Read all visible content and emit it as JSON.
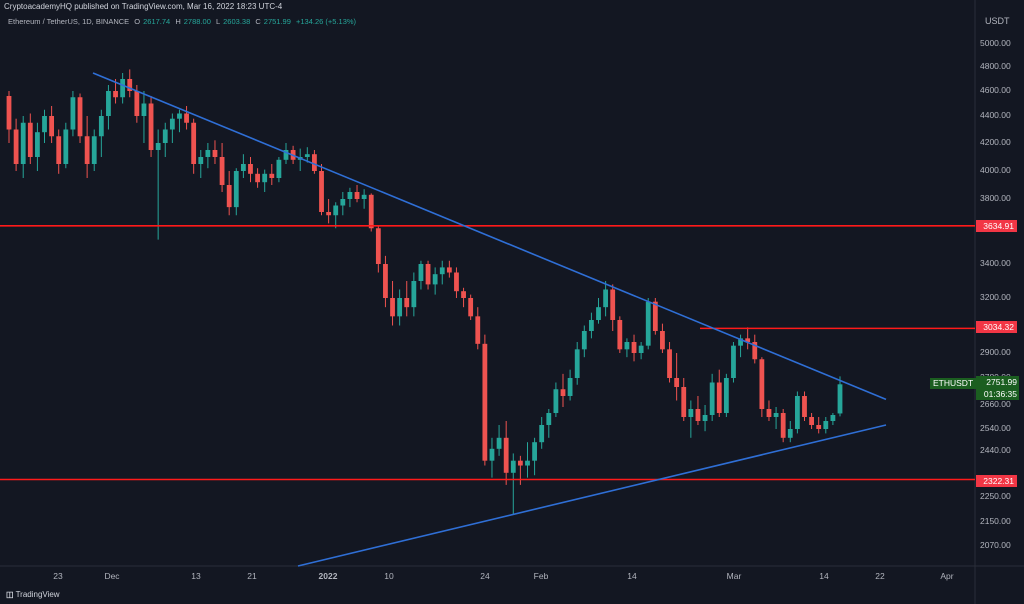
{
  "header": {
    "publisher": "CryptoacademyHQ published on TradingView.com, Mar 16, 2022 18:23 UTC-4",
    "symbol": "Ethereum / TetherUS, 1D, BINANCE",
    "open_label": "O",
    "open": "2617.74",
    "high_label": "H",
    "high": "2788.00",
    "low_label": "L",
    "low": "2603.38",
    "close_label": "C",
    "close": "2751.99",
    "change": "+134.26 (+5.13%)"
  },
  "currency": "USDT",
  "tags": {
    "ticker": "ETHUSDT",
    "last_price": "2751.99",
    "countdown": "01:36:35",
    "levels": [
      "3634.91",
      "3034.32",
      "2322.31"
    ]
  },
  "footer": {
    "logo": "TradingView"
  },
  "colors": {
    "up": "#26a69a",
    "down": "#ef5350",
    "trend": "#2f6fd6",
    "level": "#ff1a1a",
    "background": "#131722"
  },
  "chart_data": {
    "type": "candlestick",
    "y_ticks": [
      5000,
      4800,
      4600,
      4400,
      4200,
      4000,
      3800,
      3400,
      3200,
      2900,
      2780,
      2660,
      2540,
      2440,
      2250,
      2150,
      2070
    ],
    "x_ticks": [
      "23",
      "Dec",
      "13",
      "21",
      "2022",
      "10",
      "24",
      "Feb",
      "14",
      "Mar",
      "14",
      "22",
      "Apr"
    ],
    "horizontal_levels": [
      3634.91,
      3034.32,
      2322.31
    ],
    "trendlines": [
      {
        "name": "descending",
        "from": [
          "Nov 24",
          4750
        ],
        "to": [
          "Mar 19",
          2685
        ]
      },
      {
        "name": "ascending",
        "from": [
          "Jan 1",
          2000
        ],
        "to": [
          "Mar 19",
          2560
        ]
      }
    ],
    "candles": [
      [
        4560,
        4600,
        4200,
        4300
      ],
      [
        4300,
        4380,
        4000,
        4050
      ],
      [
        4050,
        4400,
        3950,
        4350
      ],
      [
        4350,
        4420,
        4050,
        4100
      ],
      [
        4100,
        4350,
        4000,
        4280
      ],
      [
        4280,
        4450,
        4200,
        4400
      ],
      [
        4400,
        4480,
        4200,
        4250
      ],
      [
        4250,
        4300,
        3980,
        4050
      ],
      [
        4050,
        4350,
        4020,
        4300
      ],
      [
        4300,
        4600,
        4250,
        4550
      ],
      [
        4550,
        4580,
        4200,
        4250
      ],
      [
        4250,
        4400,
        3950,
        4050
      ],
      [
        4050,
        4300,
        4000,
        4250
      ],
      [
        4250,
        4450,
        4100,
        4400
      ],
      [
        4400,
        4650,
        4300,
        4600
      ],
      [
        4600,
        4700,
        4500,
        4550
      ],
      [
        4550,
        4750,
        4500,
        4700
      ],
      [
        4700,
        4780,
        4550,
        4600
      ],
      [
        4600,
        4650,
        4350,
        4400
      ],
      [
        4400,
        4600,
        4200,
        4500
      ],
      [
        4500,
        4560,
        4100,
        4150
      ],
      [
        4150,
        4300,
        3550,
        4200
      ],
      [
        4200,
        4350,
        4100,
        4300
      ],
      [
        4300,
        4420,
        4200,
        4380
      ],
      [
        4380,
        4450,
        4280,
        4420
      ],
      [
        4420,
        4480,
        4300,
        4350
      ],
      [
        4350,
        4380,
        3980,
        4050
      ],
      [
        4050,
        4150,
        3950,
        4100
      ],
      [
        4100,
        4200,
        4020,
        4150
      ],
      [
        4150,
        4220,
        4050,
        4100
      ],
      [
        4100,
        4200,
        3850,
        3900
      ],
      [
        3900,
        4000,
        3700,
        3750
      ],
      [
        3750,
        4020,
        3700,
        4000
      ],
      [
        4000,
        4120,
        3950,
        4050
      ],
      [
        4050,
        4100,
        3920,
        3980
      ],
      [
        3980,
        4020,
        3880,
        3920
      ],
      [
        3920,
        4010,
        3850,
        3980
      ],
      [
        3980,
        4050,
        3900,
        3950
      ],
      [
        3950,
        4100,
        3920,
        4080
      ],
      [
        4080,
        4200,
        4050,
        4150
      ],
      [
        4150,
        4180,
        4050,
        4080
      ],
      [
        4080,
        4160,
        4000,
        4100
      ],
      [
        4100,
        4170,
        4060,
        4120
      ],
      [
        4120,
        4150,
        3980,
        4000
      ],
      [
        4000,
        4050,
        3700,
        3720
      ],
      [
        3720,
        3800,
        3650,
        3700
      ],
      [
        3700,
        3780,
        3620,
        3760
      ],
      [
        3760,
        3850,
        3700,
        3800
      ],
      [
        3800,
        3880,
        3750,
        3850
      ],
      [
        3850,
        3900,
        3780,
        3800
      ],
      [
        3800,
        3870,
        3740,
        3830
      ],
      [
        3830,
        3840,
        3600,
        3620
      ],
      [
        3620,
        3640,
        3350,
        3400
      ],
      [
        3400,
        3450,
        3150,
        3200
      ],
      [
        3200,
        3300,
        3050,
        3100
      ],
      [
        3100,
        3250,
        3050,
        3200
      ],
      [
        3200,
        3300,
        3100,
        3150
      ],
      [
        3150,
        3350,
        3100,
        3300
      ],
      [
        3300,
        3420,
        3250,
        3400
      ],
      [
        3400,
        3420,
        3250,
        3280
      ],
      [
        3280,
        3380,
        3220,
        3340
      ],
      [
        3340,
        3420,
        3280,
        3380
      ],
      [
        3380,
        3420,
        3320,
        3350
      ],
      [
        3350,
        3380,
        3200,
        3240
      ],
      [
        3240,
        3260,
        3150,
        3200
      ],
      [
        3200,
        3220,
        3080,
        3100
      ],
      [
        3100,
        3150,
        2920,
        2950
      ],
      [
        2950,
        3000,
        2380,
        2400
      ],
      [
        2400,
        2500,
        2330,
        2450
      ],
      [
        2450,
        2560,
        2420,
        2500
      ],
      [
        2500,
        2580,
        2300,
        2350
      ],
      [
        2350,
        2430,
        2180,
        2400
      ],
      [
        2400,
        2420,
        2300,
        2380
      ],
      [
        2380,
        2480,
        2330,
        2400
      ],
      [
        2400,
        2500,
        2340,
        2480
      ],
      [
        2480,
        2600,
        2450,
        2560
      ],
      [
        2560,
        2640,
        2500,
        2620
      ],
      [
        2620,
        2760,
        2600,
        2730
      ],
      [
        2730,
        2800,
        2650,
        2700
      ],
      [
        2700,
        2820,
        2680,
        2780
      ],
      [
        2780,
        2960,
        2750,
        2920
      ],
      [
        2920,
        3050,
        2880,
        3020
      ],
      [
        3020,
        3120,
        2980,
        3080
      ],
      [
        3080,
        3200,
        3060,
        3150
      ],
      [
        3150,
        3300,
        3100,
        3250
      ],
      [
        3250,
        3280,
        3020,
        3080
      ],
      [
        3080,
        3100,
        2900,
        2920
      ],
      [
        2920,
        2980,
        2880,
        2960
      ],
      [
        2960,
        3000,
        2860,
        2900
      ],
      [
        2900,
        2960,
        2870,
        2940
      ],
      [
        2940,
        3200,
        2920,
        3180
      ],
      [
        3180,
        3200,
        3000,
        3020
      ],
      [
        3020,
        3060,
        2900,
        2920
      ],
      [
        2920,
        2960,
        2760,
        2780
      ],
      [
        2780,
        2900,
        2680,
        2740
      ],
      [
        2740,
        2780,
        2580,
        2600
      ],
      [
        2600,
        2680,
        2500,
        2640
      ],
      [
        2640,
        2700,
        2560,
        2580
      ],
      [
        2580,
        2660,
        2530,
        2610
      ],
      [
        2610,
        2800,
        2580,
        2760
      ],
      [
        2760,
        2820,
        2600,
        2620
      ],
      [
        2620,
        2800,
        2600,
        2780
      ],
      [
        2780,
        2960,
        2760,
        2940
      ],
      [
        2940,
        3000,
        2880,
        2980
      ],
      [
        2980,
        3040,
        2920,
        2960
      ],
      [
        2960,
        3000,
        2850,
        2870
      ],
      [
        2870,
        2880,
        2600,
        2640
      ],
      [
        2640,
        2680,
        2580,
        2600
      ],
      [
        2600,
        2650,
        2540,
        2620
      ],
      [
        2620,
        2640,
        2480,
        2500
      ],
      [
        2500,
        2580,
        2480,
        2540
      ],
      [
        2540,
        2720,
        2520,
        2700
      ],
      [
        2700,
        2720,
        2580,
        2600
      ],
      [
        2600,
        2620,
        2540,
        2560
      ],
      [
        2560,
        2600,
        2520,
        2540
      ],
      [
        2540,
        2600,
        2520,
        2580
      ],
      [
        2580,
        2620,
        2560,
        2610
      ],
      [
        2617.74,
        2788,
        2603.38,
        2751.99
      ]
    ]
  }
}
